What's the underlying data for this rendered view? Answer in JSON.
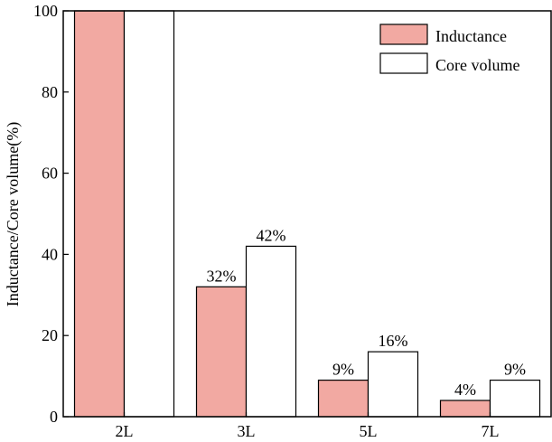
{
  "chart_data": {
    "type": "bar",
    "categories": [
      "2L",
      "3L",
      "5L",
      "7L"
    ],
    "series": [
      {
        "name": "Inductance",
        "values": [
          100,
          32,
          9,
          4
        ],
        "labels": [
          "",
          "32%",
          "9%",
          "4%"
        ],
        "color": "#f2a9a2"
      },
      {
        "name": "Core volume",
        "values": [
          100,
          42,
          16,
          9
        ],
        "labels": [
          "",
          "42%",
          "16%",
          "9%"
        ],
        "color": "#ffffff"
      }
    ],
    "ylabel": "Inductance/Core volume(%)",
    "ylim": [
      0,
      100
    ],
    "yticks": [
      "0",
      "20",
      "40",
      "60",
      "80",
      "100"
    ],
    "legend_position": "top-right",
    "grid": false
  }
}
